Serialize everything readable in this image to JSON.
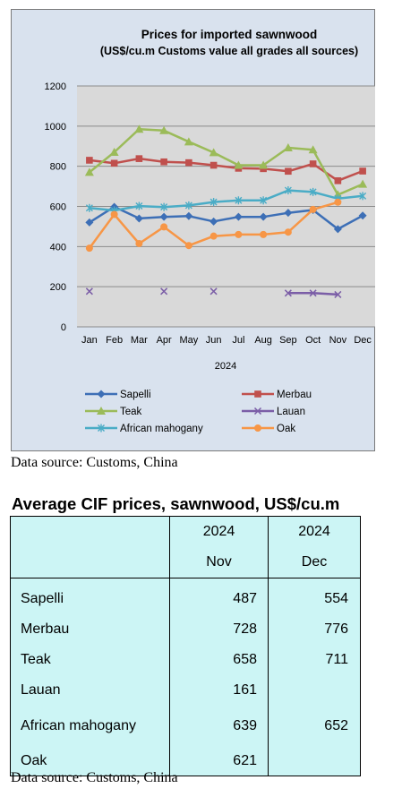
{
  "chart_data": {
    "type": "line",
    "title": "Prices for imported sawnwood",
    "subtitle": "(US$/cu.m Customs value all grades all sources)",
    "categories": [
      "Jan",
      "Feb",
      "Mar",
      "Apr",
      "May",
      "Jun",
      "Jul",
      "Aug",
      "Sep",
      "Oct",
      "Nov",
      "Dec"
    ],
    "xlabel": "2024",
    "ylim": [
      0,
      1200
    ],
    "yticks": [
      0,
      200,
      400,
      600,
      800,
      1000,
      1200
    ],
    "grid": true,
    "legend_position": "bottom",
    "series": [
      {
        "name": "Sapelli",
        "color": "#3d6fb6",
        "marker": "diamond",
        "values": [
          520,
          598,
          540,
          548,
          552,
          525,
          548,
          548,
          568,
          582,
          487,
          554
        ]
      },
      {
        "name": "Merbau",
        "color": "#c0504d",
        "marker": "square",
        "values": [
          830,
          815,
          838,
          822,
          818,
          805,
          790,
          788,
          775,
          812,
          728,
          776
        ]
      },
      {
        "name": "Teak",
        "color": "#9bbb59",
        "marker": "triangle",
        "values": [
          770,
          870,
          985,
          978,
          922,
          868,
          805,
          805,
          892,
          882,
          658,
          711
        ]
      },
      {
        "name": "Lauan",
        "color": "#7b5ea7",
        "marker": "x",
        "values": [
          177,
          null,
          null,
          177,
          null,
          177,
          null,
          null,
          168,
          168,
          161,
          null
        ]
      },
      {
        "name": "African mahogany",
        "color": "#4aacc6",
        "marker": "star",
        "values": [
          592,
          580,
          602,
          597,
          605,
          622,
          630,
          630,
          680,
          672,
          639,
          652
        ]
      },
      {
        "name": "Oak",
        "color": "#f79646",
        "marker": "circle",
        "values": [
          392,
          560,
          415,
          498,
          405,
          452,
          460,
          460,
          472,
          585,
          621,
          null
        ]
      }
    ]
  },
  "chart_source": "Data source: Customs, China",
  "table": {
    "title": "Average CIF prices, sawnwood, US$/cu.m",
    "header_years": [
      "2024",
      "2024"
    ],
    "header_months": [
      "Nov",
      "Dec"
    ],
    "rows": [
      {
        "label": "Sapelli",
        "nov": "487",
        "dec": "554"
      },
      {
        "label": "Merbau",
        "nov": "728",
        "dec": "776"
      },
      {
        "label": "Teak",
        "nov": "658",
        "dec": "711"
      },
      {
        "label": "Lauan",
        "nov": "161",
        "dec": ""
      },
      {
        "label": "African mahogany",
        "nov": "639",
        "dec": "652"
      },
      {
        "label": "Oak",
        "nov": "621",
        "dec": ""
      }
    ],
    "source": "Data source: Customs, China"
  }
}
